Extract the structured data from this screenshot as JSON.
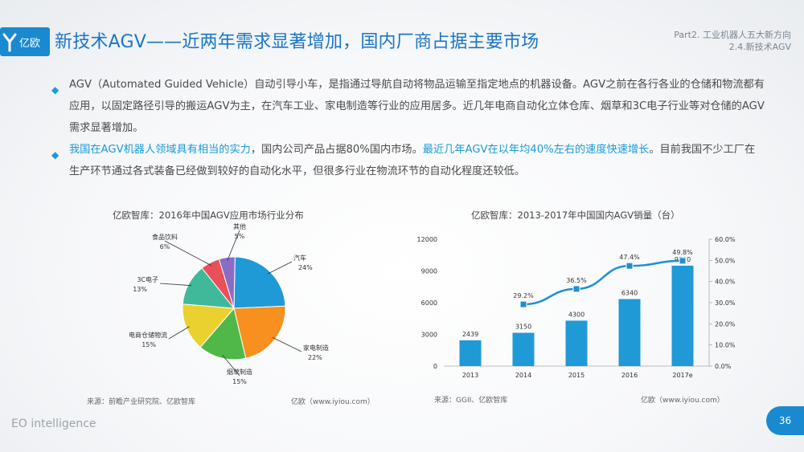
{
  "header": {
    "logo_text": "亿欧",
    "title": "新技术AGV——近两年需求显著增加，国内厂商占据主要市场",
    "part_line1": "Part2. 工业机器人五大新方向",
    "part_line2": "2.4.新技术AGV"
  },
  "bullets": [
    {
      "text": "AGV（Automated Guided Vehicle）自动引导小车，是指通过导航自动将物品运输至指定地点的机器设备。AGV之前在各行各业的仓储和物流都有应用，以固定路径引导的搬运AGV为主，在汽车工业、家电制造等行业的应用居多。近几年电商自动化立体仓库、烟草和3C电子行业等对仓储的AGV需求显著增加。"
    },
    {
      "part1": "我国在AGV机器人领域具有相当的实力",
      "part2": "，国内公司产品占据80%国内市场。",
      "part3": "最近几年AGV在以年均40%左右的速度快速增长",
      "part4": "。目前我国不少工厂在生产环节通过各式装备已经做到较好的自动化水平，但很多行业在物流环节的自动化程度还较低。"
    }
  ],
  "chart_data": [
    {
      "type": "pie",
      "title": "亿欧智库：2016年中国AGV应用市场行业分布",
      "slices": [
        {
          "label": "汽车",
          "value": 24,
          "value_label": "24%",
          "color": "#1f9ad6"
        },
        {
          "label": "家电制造",
          "value": 22,
          "value_label": "22%",
          "color": "#f7901e"
        },
        {
          "label": "烟草制造",
          "value": 15,
          "value_label": "15%",
          "color": "#4fb848"
        },
        {
          "label": "电商仓储物流",
          "value": 15,
          "value_label": "15%",
          "color": "#ead12f"
        },
        {
          "label": "3C电子",
          "value": 13,
          "value_label": "13%",
          "color": "#3fb99a"
        },
        {
          "label": "食品饮料",
          "value": 6,
          "value_label": "6%",
          "color": "#e8505a"
        },
        {
          "label": "其他",
          "value": 5,
          "value_label": "5%",
          "color": "#8b6cc4"
        }
      ],
      "source": "来源：前瞻产业研究院、亿欧智库",
      "credit": "亿欧（www.iyiou.com）"
    },
    {
      "type": "bar",
      "title": "亿欧智库：2013-2017年中国国内AGV销量（台）",
      "categories": [
        "2013",
        "2014",
        "2015",
        "2016",
        "2017e"
      ],
      "series": [
        {
          "values": [
            2439,
            3150,
            4300,
            6340,
            9500
          ],
          "color": "#1f9ad6"
        },
        {
          "values": [
            null,
            29.2,
            36.5,
            47.4,
            49.8
          ],
          "value_labels": [
            "",
            "29.2%",
            "36.5%",
            "47.4%",
            "49.8%"
          ],
          "color": "#1f8fd0"
        }
      ],
      "y_left": {
        "ticks": [
          0,
          3000,
          6000,
          9000,
          12000
        ],
        "ylim": [
          0,
          12000
        ]
      },
      "y_right": {
        "ticks": [
          "0.0%",
          "10.0%",
          "20.0%",
          "30.0%",
          "40.0%",
          "50.0%",
          "60.0%"
        ],
        "ylim": [
          0,
          60
        ]
      },
      "source": "来源：GGII、亿欧智库",
      "credit": "亿欧（www.iyiou.com）"
    }
  ],
  "footer": {
    "brand": "EO intelligence",
    "page": "36"
  }
}
